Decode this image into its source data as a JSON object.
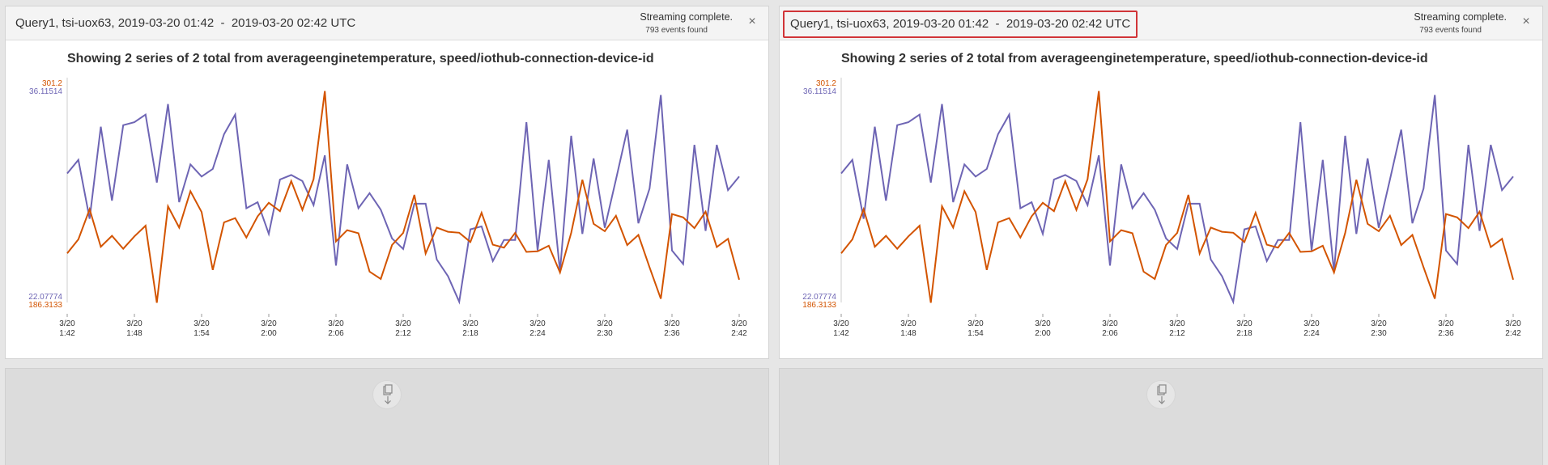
{
  "panels": [
    {
      "query_title": "Query1, tsi-uox63, 2019-03-20 01:42  -  2019-03-20 02:42 UTC",
      "status": "Streaming complete.",
      "events": "793 events found",
      "close_symbol": "×",
      "chart_title": "Showing 2 series of 2 total from averageenginetemperature, speed/iothub-connection-device-id",
      "download_icon": "download-icon"
    },
    {
      "query_title": "Query1, tsi-uox63, 2019-03-20 01:42  -  2019-03-20 02:42 UTC",
      "status": "Streaming complete.",
      "events": "793 events found",
      "close_symbol": "×",
      "chart_title": "Showing 2 series of 2 total from averageenginetemperature, speed/iothub-connection-device-id",
      "download_icon": "download-icon"
    }
  ],
  "colors": {
    "series_purple": "#6e65b4",
    "series_orange": "#d35400",
    "highlight_border": "#d13438"
  },
  "chart_data": {
    "type": "line",
    "x_ticks": [
      [
        "3/20",
        "1:42"
      ],
      [
        "3/20",
        "1:48"
      ],
      [
        "3/20",
        "1:54"
      ],
      [
        "3/20",
        "2:00"
      ],
      [
        "3/20",
        "2:06"
      ],
      [
        "3/20",
        "2:12"
      ],
      [
        "3/20",
        "2:18"
      ],
      [
        "3/20",
        "2:24"
      ],
      [
        "3/20",
        "2:30"
      ],
      [
        "3/20",
        "2:36"
      ],
      [
        "3/20",
        "2:42"
      ]
    ],
    "x_range_minutes": [
      0,
      60
    ],
    "series": [
      {
        "axis_min": "22.07774",
        "axis_max": "36.11514",
        "color": "#6e65b4",
        "ylim": [
          22.07774,
          36.11514
        ],
        "x": [
          0,
          1,
          2,
          3,
          4,
          5,
          6,
          7,
          8,
          9,
          10,
          11,
          12,
          13,
          14,
          15,
          16,
          17,
          18,
          19,
          20,
          21,
          22,
          23,
          24,
          25,
          26,
          27,
          28,
          29,
          30,
          31,
          32,
          33,
          34,
          35,
          36,
          37,
          38,
          39,
          40,
          41,
          42,
          43,
          44,
          45,
          46,
          47,
          48,
          49,
          50,
          51,
          52,
          53,
          54,
          55,
          56,
          57,
          58,
          59,
          60
        ],
        "y": [
          30.3,
          31.2,
          27.3,
          33.4,
          28.5,
          33.5,
          33.7,
          34.2,
          29.7,
          34.9,
          28.4,
          30.9,
          30.1,
          30.6,
          32.9,
          34.2,
          28.0,
          28.4,
          26.3,
          29.9,
          30.2,
          29.8,
          28.2,
          31.5,
          24.2,
          30.9,
          28.0,
          29.0,
          27.9,
          26.0,
          25.3,
          28.3,
          28.3,
          24.6,
          23.5,
          21.8,
          26.6,
          26.8,
          24.5,
          25.9,
          25.9,
          33.7,
          25.2,
          31.2,
          23.8,
          32.8,
          26.3,
          31.3,
          26.7,
          29.9,
          33.2,
          27.0,
          29.3,
          35.5,
          25.2,
          24.3,
          32.2,
          26.5,
          32.2,
          29.2,
          30.1
        ]
      },
      {
        "axis_min": "186.3133",
        "axis_max": "301.2",
        "color": "#d35400",
        "ylim": [
          186.3133,
          301.2
        ],
        "x": [
          0,
          1,
          2,
          3,
          4,
          5,
          6,
          7,
          8,
          9,
          10,
          11,
          12,
          13,
          14,
          15,
          16,
          17,
          18,
          19,
          20,
          21,
          22,
          23,
          24,
          25,
          26,
          27,
          28,
          29,
          30,
          31,
          32,
          33,
          34,
          35,
          36,
          37,
          38,
          39,
          40,
          41,
          42,
          43,
          44,
          45,
          46,
          47,
          48,
          49,
          50,
          51,
          52,
          53,
          54,
          55,
          56,
          57,
          58,
          59,
          60
        ],
        "y": [
          210.3,
          217.9,
          234.2,
          213.9,
          219.8,
          212.8,
          219.5,
          225.3,
          183.5,
          235.8,
          224.3,
          244.0,
          232.7,
          201.3,
          227.1,
          229.4,
          218.9,
          230.4,
          237.7,
          233.2,
          249.5,
          233.9,
          250.5,
          298.3,
          216.8,
          222.9,
          221.2,
          200.4,
          196.4,
          214.8,
          221.4,
          242.0,
          210.2,
          224.3,
          222.0,
          221.5,
          216.5,
          232.3,
          215.0,
          213.4,
          221.4,
          211.1,
          211.4,
          214.4,
          199.9,
          221.4,
          250.2,
          226.3,
          222.3,
          230.7,
          214.8,
          220.3,
          202.7,
          185.7,
          231.6,
          229.8,
          224.0,
          232.9,
          213.7,
          218.2,
          196.0
        ]
      }
    ]
  }
}
